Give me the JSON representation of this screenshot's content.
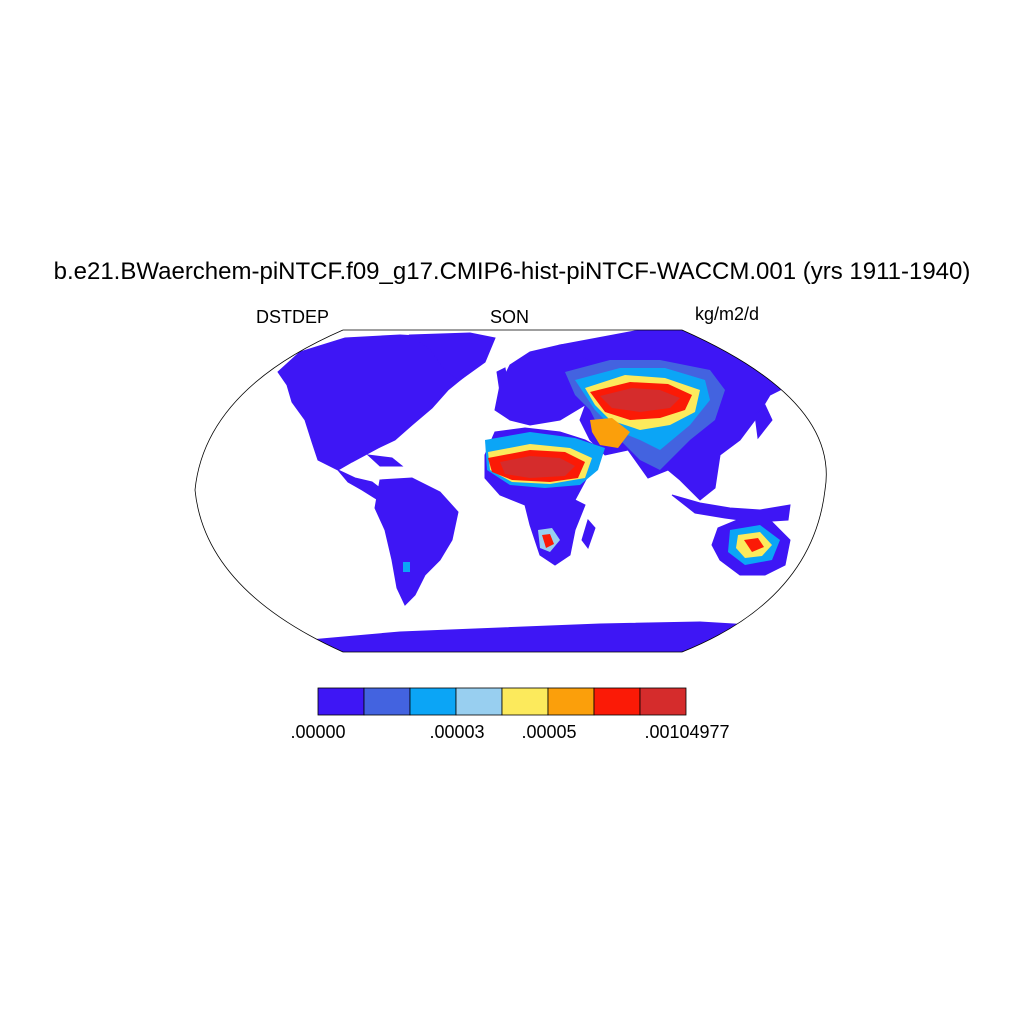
{
  "title": "b.e21.BWaerchem-piNTCF.f09_g17.CMIP6-hist-piNTCF-WACCM.001 (yrs 1911-1940)",
  "left_label": "DSTDEP",
  "center_label": "SON",
  "right_label": "kg/m2/d",
  "colorbar": {
    "colors": [
      "#3e16f5",
      "#4363e0",
      "#0ba5f6",
      "#98cff0",
      "#fcea5c",
      "#fb9f0b",
      "#fb1a06",
      "#d52c2c"
    ],
    "labels": [
      ".00000",
      ".00003",
      ".00005",
      ".00104977"
    ]
  },
  "colors": {
    "land": "#3e16f5",
    "ocean": "#ffffff",
    "border": "#000000"
  }
}
